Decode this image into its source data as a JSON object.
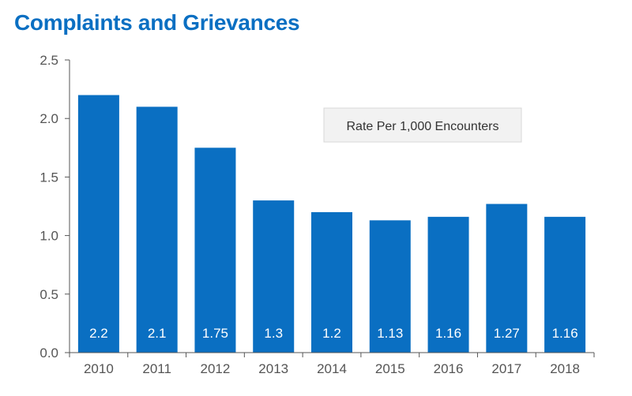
{
  "chart_data": {
    "type": "bar",
    "title": "Complaints and Grievances",
    "categories": [
      "2010",
      "2011",
      "2012",
      "2013",
      "2014",
      "2015",
      "2016",
      "2017",
      "2018"
    ],
    "series": [
      {
        "name": "Rate Per 1,000 Encounters",
        "values": [
          2.2,
          2.1,
          1.75,
          1.3,
          1.2,
          1.13,
          1.16,
          1.27,
          1.16
        ],
        "labels": [
          "2.2",
          "2.1",
          "1.75",
          "1.3",
          "1.2",
          "1.13",
          "1.16",
          "1.27",
          "1.16"
        ]
      }
    ],
    "ylim": [
      0,
      2.5
    ],
    "yticks": [
      "0.0",
      "0.5",
      "1.0",
      "1.5",
      "2.0",
      "2.5"
    ],
    "xlabel": "",
    "ylabel": "",
    "grid": false,
    "legend_position": "top-right",
    "colors": {
      "bar": "#0a6fc2",
      "title": "#0a6fc2",
      "axis": "#555555",
      "legend_bg": "#f2f2f2",
      "legend_border": "#d8d8d8"
    }
  }
}
